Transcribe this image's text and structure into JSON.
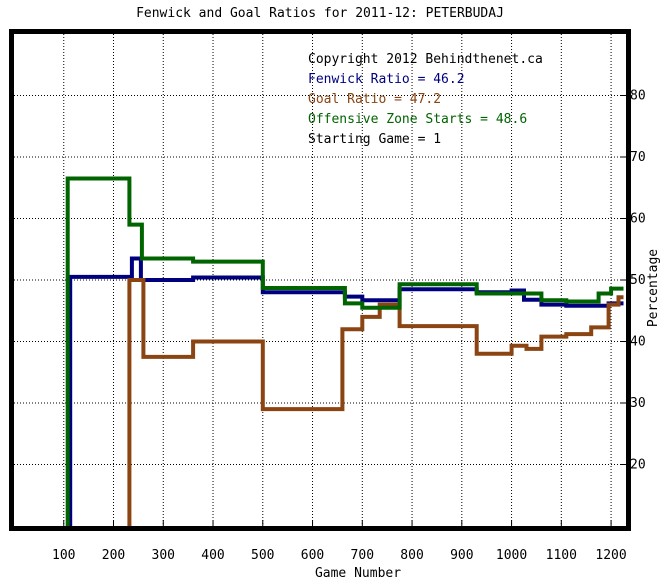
{
  "chart_data": {
    "type": "line",
    "title": "Fenwick and Goal Ratios for 2011-12: PETERBUDAJ",
    "xlabel": "Game Number",
    "ylabel": "Percentage",
    "xlim": [
      0,
      1230
    ],
    "ylim": [
      10,
      90
    ],
    "xticks": [
      100,
      200,
      300,
      400,
      500,
      600,
      700,
      800,
      900,
      1000,
      1100,
      1200
    ],
    "yticks": [
      20,
      30,
      40,
      50,
      60,
      70,
      80
    ],
    "grid": true,
    "annotations": [
      "Copyright 2012 Behindthenet.ca",
      "Fenwick Ratio = 46.2",
      "Goal Ratio = 47.2",
      "Offensive Zone Starts = 48.6",
      "Starting Game = 1"
    ],
    "series": [
      {
        "color": "#00007f",
        "points": [
          [
            113,
            0
          ],
          [
            113,
            50.5
          ],
          [
            237,
            50.5
          ],
          [
            237,
            53.5
          ],
          [
            255,
            53.5
          ],
          [
            255,
            50
          ],
          [
            360,
            50
          ],
          [
            360,
            50.4
          ],
          [
            500,
            50.4
          ],
          [
            500,
            48
          ],
          [
            665,
            48
          ],
          [
            665,
            47.3
          ],
          [
            700,
            47.3
          ],
          [
            700,
            46.7
          ],
          [
            775,
            46.7
          ],
          [
            775,
            48.5
          ],
          [
            930,
            48.5
          ],
          [
            930,
            48
          ],
          [
            1000,
            48
          ],
          [
            1000,
            48.3
          ],
          [
            1025,
            48.3
          ],
          [
            1025,
            46.8
          ],
          [
            1060,
            46.8
          ],
          [
            1060,
            46
          ],
          [
            1110,
            46
          ],
          [
            1110,
            45.8
          ],
          [
            1195,
            45.8
          ],
          [
            1195,
            46.2
          ],
          [
            1225,
            46.2
          ]
        ]
      },
      {
        "color": "#8b4513",
        "points": [
          [
            232,
            0
          ],
          [
            232,
            50
          ],
          [
            260,
            50
          ],
          [
            260,
            37.5
          ],
          [
            360,
            37.5
          ],
          [
            360,
            40
          ],
          [
            500,
            40
          ],
          [
            500,
            29
          ],
          [
            660,
            29
          ],
          [
            660,
            42
          ],
          [
            700,
            42
          ],
          [
            700,
            44
          ],
          [
            735,
            44
          ],
          [
            735,
            46
          ],
          [
            775,
            46
          ],
          [
            775,
            42.5
          ],
          [
            930,
            42.5
          ],
          [
            930,
            38
          ],
          [
            1000,
            38
          ],
          [
            1000,
            39.3
          ],
          [
            1030,
            39.3
          ],
          [
            1030,
            38.8
          ],
          [
            1060,
            38.8
          ],
          [
            1060,
            40.8
          ],
          [
            1110,
            40.8
          ],
          [
            1110,
            41.2
          ],
          [
            1160,
            41.2
          ],
          [
            1160,
            42.3
          ],
          [
            1195,
            42.3
          ],
          [
            1195,
            46
          ],
          [
            1215,
            46
          ],
          [
            1215,
            47.2
          ],
          [
            1225,
            47.2
          ]
        ]
      },
      {
        "color": "#006400",
        "points": [
          [
            108,
            0
          ],
          [
            108,
            66.5
          ],
          [
            232,
            66.5
          ],
          [
            232,
            59
          ],
          [
            257,
            59
          ],
          [
            257,
            53.5
          ],
          [
            360,
            53.5
          ],
          [
            360,
            53
          ],
          [
            500,
            53
          ],
          [
            500,
            48.7
          ],
          [
            665,
            48.7
          ],
          [
            665,
            46.2
          ],
          [
            700,
            46.2
          ],
          [
            700,
            45.5
          ],
          [
            775,
            45.5
          ],
          [
            775,
            49.3
          ],
          [
            930,
            49.3
          ],
          [
            930,
            47.8
          ],
          [
            1060,
            47.8
          ],
          [
            1060,
            46.7
          ],
          [
            1110,
            46.7
          ],
          [
            1110,
            46.5
          ],
          [
            1175,
            46.5
          ],
          [
            1175,
            47.8
          ],
          [
            1200,
            47.8
          ],
          [
            1200,
            48.6
          ],
          [
            1225,
            48.6
          ]
        ]
      }
    ]
  }
}
